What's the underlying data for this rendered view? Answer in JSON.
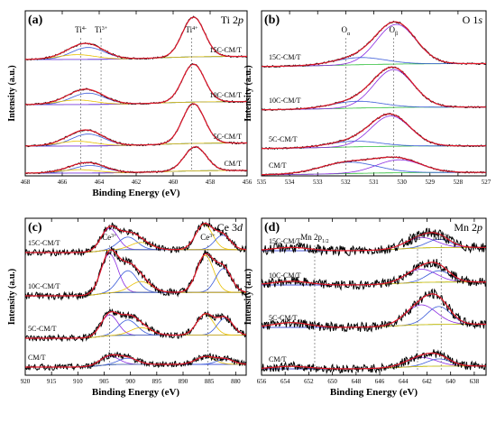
{
  "chart_data": [
    {
      "type": "line",
      "panel": "(a)",
      "title": "Ti 2p",
      "title_main": "Ti 2",
      "title_ital": "p",
      "xlabel": "Binding Energy (eV)",
      "ylabel": "Intensity (a.u.)",
      "xlim": [
        468,
        456
      ],
      "xticks": [
        468,
        466,
        464,
        462,
        460,
        458,
        456
      ],
      "x_reversed": true,
      "grid": false,
      "sample_labels": [
        "15C-CM/T",
        "10C-CM/T",
        "5C-CM/T",
        "CM/T"
      ],
      "annotations": [
        {
          "text": "Ti",
          "sup": "4-",
          "x": 465.0
        },
        {
          "text": "Ti",
          "sup": "3+",
          "x": 463.9
        },
        {
          "text": "Ti",
          "sup": "4+",
          "x": 459.0
        }
      ],
      "series": [
        {
          "sample": "15C-CM/T",
          "peaks": [
            {
              "center": 458.9,
              "height": 1.0,
              "width": 0.6
            },
            {
              "center": 464.6,
              "height": 0.3,
              "width": 0.9
            },
            {
              "center": 465.2,
              "height": 0.12,
              "width": 1.0
            }
          ]
        },
        {
          "sample": "10C-CM/T",
          "peaks": [
            {
              "center": 458.9,
              "height": 1.0,
              "width": 0.6
            },
            {
              "center": 464.6,
              "height": 0.3,
              "width": 0.9
            },
            {
              "center": 465.2,
              "height": 0.12,
              "width": 1.0
            }
          ]
        },
        {
          "sample": "5C-CM/T",
          "peaks": [
            {
              "center": 458.9,
              "height": 1.0,
              "width": 0.6
            },
            {
              "center": 464.6,
              "height": 0.3,
              "width": 0.9
            },
            {
              "center": 465.2,
              "height": 0.12,
              "width": 1.0
            }
          ]
        },
        {
          "sample": "CM/T",
          "peaks": [
            {
              "center": 458.8,
              "height": 0.7,
              "width": 0.6
            },
            {
              "center": 464.5,
              "height": 0.22,
              "width": 0.9
            },
            {
              "center": 465.1,
              "height": 0.1,
              "width": 1.0
            }
          ]
        }
      ]
    },
    {
      "type": "line",
      "panel": "(b)",
      "title": "O 1s",
      "title_main": "O 1",
      "title_ital": "s",
      "xlabel": "",
      "ylabel": "Intensity (a.u.)",
      "xlim": [
        535,
        527
      ],
      "xticks": [
        535,
        534,
        533,
        532,
        531,
        530,
        529,
        528,
        527
      ],
      "x_reversed": true,
      "grid": false,
      "sample_labels": [
        "15C-CM/T",
        "10C-CM/T",
        "5C-CM/T",
        "CM/T"
      ],
      "annotations": [
        {
          "text": "O",
          "sub": "α",
          "x": 532.0
        },
        {
          "text": "O",
          "sub": "β",
          "x": 530.3
        }
      ],
      "series": [
        {
          "sample": "15C-CM/T",
          "peaks": [
            {
              "center": 530.2,
              "height": 1.0,
              "width": 0.7
            },
            {
              "center": 531.5,
              "height": 0.18,
              "width": 0.9
            }
          ]
        },
        {
          "sample": "10C-CM/T",
          "peaks": [
            {
              "center": 530.3,
              "height": 1.0,
              "width": 0.7
            },
            {
              "center": 531.6,
              "height": 0.18,
              "width": 0.9
            }
          ]
        },
        {
          "sample": "5C-CM/T",
          "peaks": [
            {
              "center": 530.4,
              "height": 0.8,
              "width": 0.7
            },
            {
              "center": 531.7,
              "height": 0.15,
              "width": 0.9
            }
          ]
        },
        {
          "sample": "CM/T",
          "peaks": [
            {
              "center": 530.1,
              "height": 0.4,
              "width": 0.8
            },
            {
              "center": 531.9,
              "height": 0.35,
              "width": 1.0
            }
          ]
        }
      ]
    },
    {
      "type": "line",
      "panel": "(c)",
      "title": "Ce 3d",
      "title_main": "Ce 3",
      "title_ital": "d",
      "xlabel": "Binding Energy (eV)",
      "ylabel": "Intensity (a.u.)",
      "xlim": [
        920,
        878
      ],
      "xticks": [
        920,
        915,
        910,
        905,
        900,
        895,
        890,
        885,
        880
      ],
      "x_reversed": true,
      "grid": false,
      "sample_labels": [
        "15C-CM/T",
        "10C-CM/T",
        "5C-CM/T",
        "CM/T"
      ],
      "annotations": [
        {
          "text": "Ce",
          "sup": "3+",
          "x": 904.0
        },
        {
          "text": "Ce",
          "sup": "3+",
          "x": 885.3
        }
      ],
      "series": [
        {
          "sample": "15C-CM/T",
          "peaks": [
            {
              "center": 904.0,
              "height": 0.6,
              "width": 1.6
            },
            {
              "center": 900.5,
              "height": 0.35,
              "width": 1.8
            },
            {
              "center": 886.0,
              "height": 0.7,
              "width": 1.6
            },
            {
              "center": 882.5,
              "height": 0.4,
              "width": 1.5
            },
            {
              "center": 898.0,
              "height": 0.2,
              "width": 2.0
            }
          ]
        },
        {
          "sample": "10C-CM/T",
          "peaks": [
            {
              "center": 904.0,
              "height": 0.9,
              "width": 1.6
            },
            {
              "center": 900.5,
              "height": 0.5,
              "width": 1.8
            },
            {
              "center": 885.8,
              "height": 0.85,
              "width": 1.6
            },
            {
              "center": 882.3,
              "height": 0.55,
              "width": 1.5
            },
            {
              "center": 898.0,
              "height": 0.25,
              "width": 2.0
            }
          ]
        },
        {
          "sample": "5C-CM/T",
          "peaks": [
            {
              "center": 904.0,
              "height": 0.55,
              "width": 1.6
            },
            {
              "center": 900.5,
              "height": 0.4,
              "width": 1.8
            },
            {
              "center": 885.8,
              "height": 0.55,
              "width": 1.6
            },
            {
              "center": 882.0,
              "height": 0.45,
              "width": 1.5
            },
            {
              "center": 898.0,
              "height": 0.2,
              "width": 2.0
            }
          ]
        },
        {
          "sample": "CM/T",
          "peaks": [
            {
              "center": 904.0,
              "height": 0.25,
              "width": 1.8
            },
            {
              "center": 900.5,
              "height": 0.18,
              "width": 1.8
            },
            {
              "center": 885.8,
              "height": 0.22,
              "width": 1.8
            },
            {
              "center": 882.0,
              "height": 0.15,
              "width": 1.6
            }
          ]
        }
      ]
    },
    {
      "type": "line",
      "panel": "(d)",
      "title": "Mn 2p",
      "title_main": "Mn 2",
      "title_ital": "p",
      "xlabel": "Binding Energy (eV)",
      "ylabel": "Intensity (a.u.)",
      "xlim": [
        656,
        637
      ],
      "xticks": [
        656,
        654,
        652,
        650,
        648,
        646,
        644,
        642,
        640,
        638
      ],
      "x_reversed": true,
      "grid": false,
      "sample_labels": [
        "15C-CM/T",
        "10C-CM/T",
        "5C-CM/T",
        "CM/T"
      ],
      "annotations": [
        {
          "text": "Mn 2p",
          "sub": "1/2",
          "x": 651.5
        },
        {
          "text": "Mn",
          "sup": "4+",
          "x": 642.8
        },
        {
          "text": "Mn",
          "sup": "3+",
          "x": 640.8
        }
      ],
      "series": [
        {
          "sample": "15C-CM/T",
          "peaks": [
            {
              "center": 642.5,
              "height": 0.25,
              "width": 1.3
            },
            {
              "center": 641.0,
              "height": 0.2,
              "width": 1.0
            },
            {
              "center": 653.5,
              "height": 0.08,
              "width": 1.5
            }
          ]
        },
        {
          "sample": "10C-CM/T",
          "peaks": [
            {
              "center": 642.5,
              "height": 0.35,
              "width": 1.3
            },
            {
              "center": 641.0,
              "height": 0.3,
              "width": 1.0
            },
            {
              "center": 653.5,
              "height": 0.1,
              "width": 1.5
            }
          ]
        },
        {
          "sample": "5C-CM/T",
          "peaks": [
            {
              "center": 642.5,
              "height": 0.5,
              "width": 1.3
            },
            {
              "center": 641.0,
              "height": 0.45,
              "width": 1.0
            },
            {
              "center": 653.5,
              "height": 0.12,
              "width": 1.5
            }
          ]
        },
        {
          "sample": "CM/T",
          "peaks": [
            {
              "center": 642.5,
              "height": 0.25,
              "width": 1.3
            },
            {
              "center": 641.0,
              "height": 0.2,
              "width": 1.0
            },
            {
              "center": 653.5,
              "height": 0.07,
              "width": 1.5
            }
          ]
        }
      ]
    }
  ],
  "colors": {
    "data": "#000000",
    "fit": "#e0182a",
    "comp_a": "#3b5bd9",
    "comp_b": "#8a2be2",
    "comp_c": "#e8c000",
    "baseline": "#12b5b5",
    "baseline_alt": "#2fbf3a",
    "guide": "#555555"
  }
}
